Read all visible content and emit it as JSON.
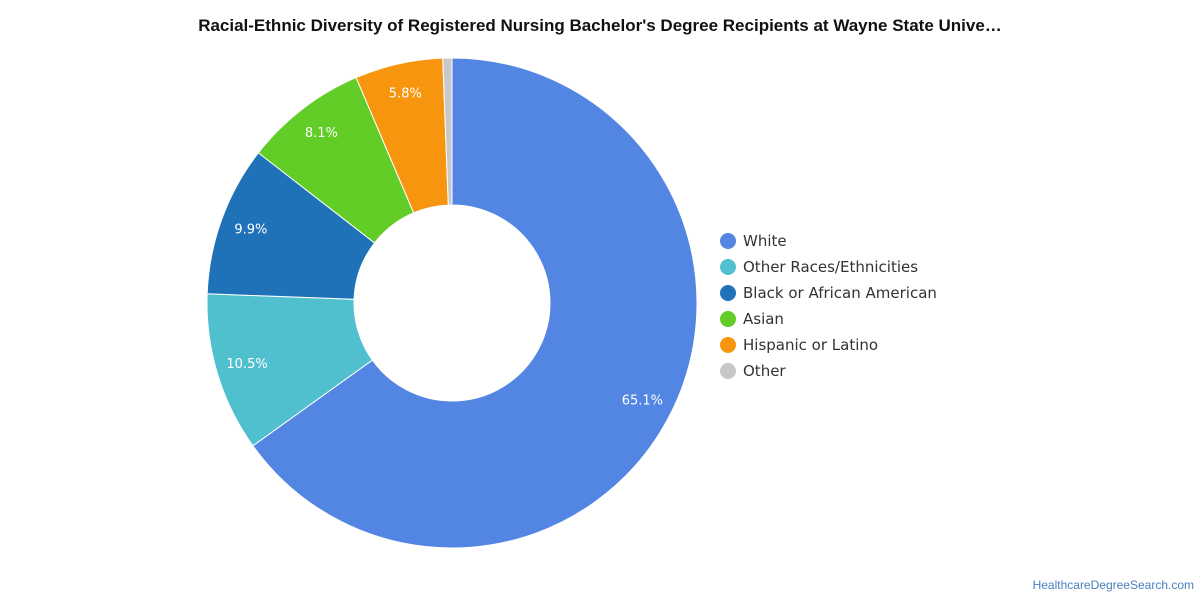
{
  "chart_data": {
    "type": "pie",
    "subtype": "donut",
    "title": "Racial-Ethnic Diversity of Registered Nursing Bachelor's Degree Recipients at Wayne State Unive…",
    "legend_position": "right",
    "series": [
      {
        "name": "White",
        "value": 65.1,
        "label": "65.1%",
        "color": "#5385e3"
      },
      {
        "name": "Other Races/Ethnicities",
        "value": 10.5,
        "label": "10.5%",
        "color": "#50c0cf"
      },
      {
        "name": "Black or African American",
        "value": 9.9,
        "label": "9.9%",
        "color": "#1f72b8"
      },
      {
        "name": "Asian",
        "value": 8.1,
        "label": "8.1%",
        "color": "#62cd26"
      },
      {
        "name": "Hispanic or Latino",
        "value": 5.8,
        "label": "5.8%",
        "color": "#f7950f"
      },
      {
        "name": "Other",
        "value": 0.6,
        "label": "",
        "color": "#c8c8c8"
      }
    ]
  },
  "watermark": "HealthcareDegreeSearch.com"
}
